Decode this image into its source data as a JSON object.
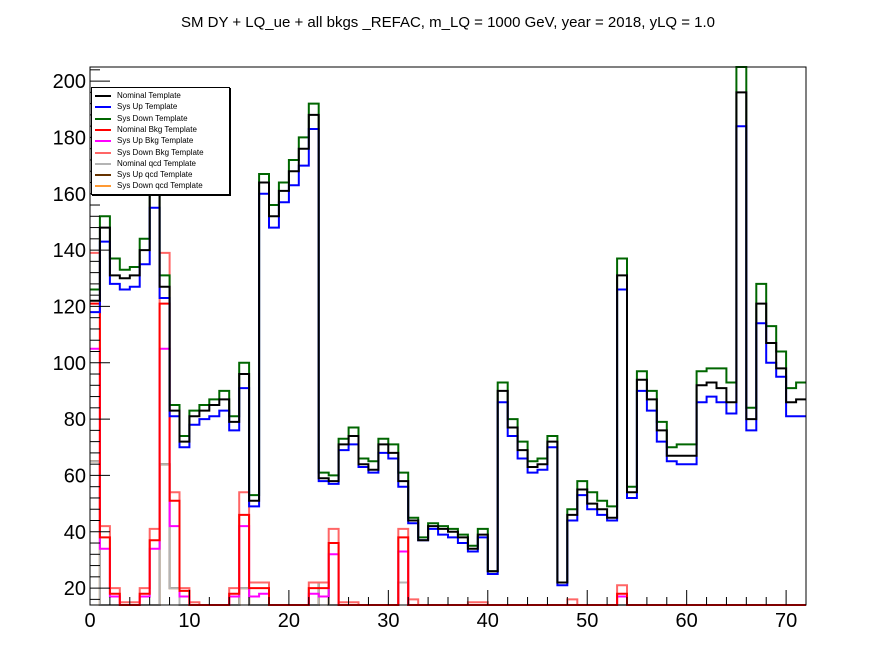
{
  "title": "SM DY + LQ_ue + all bkgs _REFAC, m_LQ = 1000 GeV, year = 2018, yLQ = 1.0",
  "chart_data": {
    "type": "line",
    "title": "SM DY + LQ_ue + all bkgs _REFAC, m_LQ = 1000 GeV, year = 2018, yLQ = 1.0",
    "xlabel": "",
    "ylabel": "",
    "xlim": [
      0,
      72
    ],
    "ylim": [
      14,
      205
    ],
    "x_ticks": [
      0,
      10,
      20,
      30,
      40,
      50,
      60,
      70
    ],
    "y_ticks": [
      20,
      40,
      60,
      80,
      100,
      120,
      140,
      160,
      180,
      200
    ],
    "bin_edges": [
      0,
      1,
      2,
      3,
      4,
      5,
      6,
      7,
      8,
      9,
      10,
      11,
      12,
      13,
      14,
      15,
      16,
      17,
      18,
      19,
      20,
      21,
      22,
      23,
      24,
      25,
      26,
      27,
      28,
      29,
      30,
      31,
      32,
      33,
      34,
      35,
      36,
      37,
      38,
      39,
      40,
      41,
      42,
      43,
      44,
      45,
      46,
      47,
      48,
      49,
      50,
      51,
      52,
      53,
      54,
      55,
      56,
      57,
      58,
      59,
      60,
      61,
      62,
      63,
      64,
      65,
      66,
      67,
      68,
      69,
      70,
      71,
      72
    ],
    "legend_position": "top-left",
    "grid": false,
    "series": [
      {
        "name": "Nominal Template",
        "color": "#000000",
        "values": [
          122,
          148,
          131,
          130,
          131,
          140,
          160,
          127,
          83,
          72,
          81,
          83,
          85,
          87,
          79,
          96,
          51,
          164,
          152,
          161,
          168,
          176,
          188,
          59,
          58,
          71,
          74,
          64,
          62,
          71,
          68,
          58,
          44,
          37,
          42,
          41,
          40,
          38,
          34,
          39,
          26,
          90,
          77,
          69,
          63,
          64,
          72,
          22,
          46,
          55,
          50,
          48,
          45,
          131,
          54,
          94,
          87,
          76,
          67,
          67,
          67,
          92,
          93,
          91,
          86,
          196,
          80,
          121,
          107,
          98,
          86,
          87
        ]
      },
      {
        "name": "Sys Up Template",
        "color": "#0000ff",
        "values": [
          118,
          143,
          128,
          126,
          127,
          135,
          155,
          123,
          81,
          70,
          78,
          80,
          81,
          83,
          76,
          91,
          49,
          160,
          148,
          157,
          163,
          170,
          183,
          58,
          57,
          69,
          71,
          63,
          61,
          68,
          66,
          56,
          43,
          37,
          41,
          39,
          38,
          36,
          33,
          38,
          25,
          86,
          74,
          66,
          61,
          62,
          70,
          21,
          44,
          53,
          48,
          46,
          44,
          126,
          52,
          90,
          83,
          72,
          65,
          64,
          64,
          86,
          88,
          86,
          82,
          184,
          76,
          114,
          100,
          95,
          81,
          81
        ]
      },
      {
        "name": "Sys Down Template",
        "color": "#006600",
        "values": [
          126,
          152,
          137,
          133,
          134,
          144,
          165,
          131,
          85,
          74,
          83,
          85,
          87,
          90,
          81,
          100,
          53,
          167,
          156,
          164,
          172,
          180,
          192,
          61,
          60,
          73,
          77,
          66,
          65,
          73,
          71,
          61,
          45,
          38,
          43,
          42,
          41,
          39,
          35,
          41,
          26,
          93,
          80,
          72,
          65,
          66,
          74,
          22,
          48,
          58,
          54,
          51,
          49,
          137,
          56,
          97,
          90,
          79,
          70,
          71,
          71,
          97,
          98,
          98,
          93,
          205,
          84,
          128,
          113,
          104,
          91,
          93
        ]
      },
      {
        "name": "Nominal Bkg Template",
        "color": "#ff0000",
        "values": [
          121,
          38,
          18,
          14,
          14,
          18,
          37,
          121,
          51,
          19,
          14,
          14,
          14,
          14,
          18,
          46,
          20,
          20,
          14,
          14,
          14,
          14,
          20,
          20,
          36,
          14,
          14,
          14,
          14,
          14,
          14,
          38,
          14,
          14,
          14,
          14,
          14,
          14,
          14,
          14,
          14,
          14,
          14,
          14,
          14,
          14,
          14,
          14,
          14,
          14,
          14,
          14,
          14,
          18,
          14,
          14,
          14,
          14,
          14,
          14,
          14,
          14,
          14,
          14,
          14,
          14,
          14,
          14,
          14,
          14,
          14,
          14
        ]
      },
      {
        "name": "Sys Up Bkg Template",
        "color": "#ff00ff",
        "values": [
          105,
          34,
          17,
          14,
          14,
          17,
          34,
          105,
          42,
          17,
          14,
          14,
          14,
          14,
          17,
          42,
          17,
          18,
          14,
          14,
          14,
          14,
          18,
          17,
          32,
          14,
          14,
          14,
          14,
          14,
          14,
          33,
          14,
          14,
          14,
          14,
          14,
          14,
          14,
          14,
          14,
          14,
          14,
          14,
          14,
          14,
          14,
          14,
          14,
          14,
          14,
          14,
          14,
          17,
          14,
          14,
          14,
          14,
          14,
          14,
          14,
          14,
          14,
          14,
          14,
          14,
          14,
          14,
          14,
          14,
          14,
          14
        ]
      },
      {
        "name": "Sys Down Bkg Template",
        "color": "#ff6666",
        "values": [
          139,
          42,
          20,
          15,
          15,
          20,
          41,
          139,
          54,
          20,
          15,
          14,
          14,
          14,
          20,
          54,
          22,
          22,
          14,
          14,
          14,
          14,
          22,
          22,
          41,
          15,
          15,
          14,
          14,
          14,
          14,
          41,
          16,
          14,
          14,
          14,
          14,
          14,
          15,
          15,
          14,
          14,
          14,
          14,
          14,
          14,
          14,
          14,
          16,
          14,
          14,
          14,
          14,
          21,
          14,
          14,
          14,
          14,
          14,
          14,
          14,
          14,
          14,
          14,
          14,
          14,
          14,
          14,
          14,
          14,
          14,
          14
        ]
      },
      {
        "name": "Nominal qcd Template",
        "color": "#b4b4b4",
        "values": [
          65,
          14,
          14,
          14,
          14,
          14,
          14,
          64,
          20,
          14,
          14,
          14,
          14,
          14,
          14,
          20,
          14,
          14,
          14,
          14,
          14,
          14,
          14,
          22,
          14,
          14,
          14,
          14,
          14,
          14,
          14,
          22,
          14,
          14,
          14,
          14,
          14,
          14,
          14,
          14,
          14,
          14,
          14,
          14,
          14,
          14,
          14,
          14,
          14,
          14,
          14,
          14,
          14,
          14,
          14,
          14,
          14,
          14,
          14,
          14,
          14,
          14,
          14,
          14,
          14,
          14,
          14,
          14,
          14,
          14,
          14,
          14
        ]
      },
      {
        "name": "Sys Up qcd Template",
        "color": "#663300",
        "values": [
          65,
          14,
          14,
          14,
          14,
          14,
          14,
          64,
          20,
          14,
          14,
          14,
          14,
          14,
          14,
          20,
          14,
          14,
          14,
          14,
          14,
          14,
          14,
          22,
          14,
          14,
          14,
          14,
          14,
          14,
          14,
          22,
          14,
          14,
          14,
          14,
          14,
          14,
          14,
          14,
          14,
          14,
          14,
          14,
          14,
          14,
          14,
          14,
          14,
          14,
          14,
          14,
          14,
          14,
          14,
          14,
          14,
          14,
          14,
          14,
          14,
          14,
          14,
          14,
          14,
          14,
          14,
          14,
          14,
          14,
          14,
          14
        ]
      },
      {
        "name": "Sys Down qcd Template",
        "color": "#ff9933",
        "values": [
          65,
          14,
          14,
          14,
          14,
          14,
          14,
          64,
          20,
          14,
          14,
          14,
          14,
          14,
          14,
          20,
          14,
          14,
          14,
          14,
          14,
          14,
          14,
          22,
          14,
          14,
          14,
          14,
          14,
          14,
          14,
          22,
          14,
          14,
          14,
          14,
          14,
          14,
          14,
          14,
          14,
          14,
          14,
          14,
          14,
          14,
          14,
          14,
          14,
          14,
          14,
          14,
          14,
          14,
          14,
          14,
          14,
          14,
          14,
          14,
          14,
          14,
          14,
          14,
          14,
          14,
          14,
          14,
          14,
          14,
          14,
          14
        ]
      }
    ]
  }
}
